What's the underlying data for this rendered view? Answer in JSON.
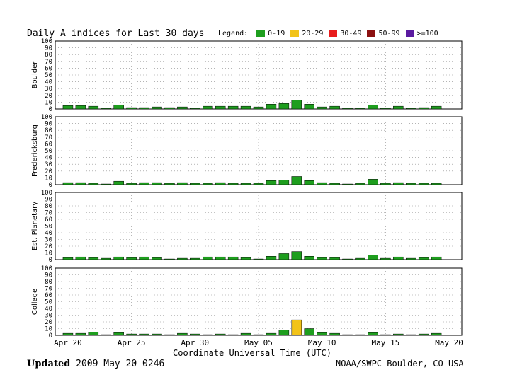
{
  "title": "Daily A  indices for Last 30 days",
  "legend": {
    "label": "Legend:",
    "items": [
      {
        "label": "0-19",
        "color": "#1e9e1e"
      },
      {
        "label": "20-29",
        "color": "#f2c318"
      },
      {
        "label": "30-49",
        "color": "#e81c1c"
      },
      {
        "label": "50-99",
        "color": "#8b1010"
      },
      {
        "label": ">=100",
        "color": "#5a1aa0"
      }
    ]
  },
  "footer": {
    "updated_label": "Updated",
    "updated_value": "2009 May 20 0246",
    "source": "NOAA/SWPC Boulder, CO USA"
  },
  "chart_data": [
    {
      "type": "bar",
      "ylabel": "Boulder",
      "ylim": [
        0,
        100
      ],
      "yticks": [
        0,
        10,
        20,
        30,
        40,
        50,
        60,
        70,
        80,
        90,
        100
      ],
      "x_tick_labels": [
        "Apr 20",
        "Apr 25",
        "Apr 30",
        "May 05",
        "May 10",
        "May 15",
        "May 20"
      ],
      "categories": [
        "Apr 20",
        "Apr 21",
        "Apr 22",
        "Apr 23",
        "Apr 24",
        "Apr 25",
        "Apr 26",
        "Apr 27",
        "Apr 28",
        "Apr 29",
        "Apr 30",
        "May 01",
        "May 02",
        "May 03",
        "May 04",
        "May 05",
        "May 06",
        "May 07",
        "May 08",
        "May 09",
        "May 10",
        "May 11",
        "May 12",
        "May 13",
        "May 14",
        "May 15",
        "May 16",
        "May 17",
        "May 18",
        "May 19"
      ],
      "values": [
        5,
        5,
        4,
        1,
        6,
        2,
        2,
        3,
        2,
        3,
        1,
        4,
        4,
        4,
        4,
        3,
        7,
        8,
        13,
        7,
        3,
        4,
        1,
        1,
        6,
        1,
        4,
        1,
        2,
        4
      ],
      "grid": true
    },
    {
      "type": "bar",
      "ylabel": "Fredericksburg",
      "ylim": [
        0,
        100
      ],
      "yticks": [
        0,
        10,
        20,
        30,
        40,
        50,
        60,
        70,
        80,
        90,
        100
      ],
      "x_tick_labels": [
        "Apr 20",
        "Apr 25",
        "Apr 30",
        "May 05",
        "May 10",
        "May 15",
        "May 20"
      ],
      "categories": [
        "Apr 20",
        "Apr 21",
        "Apr 22",
        "Apr 23",
        "Apr 24",
        "Apr 25",
        "Apr 26",
        "Apr 27",
        "Apr 28",
        "Apr 29",
        "Apr 30",
        "May 01",
        "May 02",
        "May 03",
        "May 04",
        "May 05",
        "May 06",
        "May 07",
        "May 08",
        "May 09",
        "May 10",
        "May 11",
        "May 12",
        "May 13",
        "May 14",
        "May 15",
        "May 16",
        "May 17",
        "May 18",
        "May 19"
      ],
      "values": [
        3,
        3,
        2,
        1,
        5,
        2,
        3,
        3,
        2,
        3,
        2,
        2,
        3,
        2,
        2,
        2,
        6,
        7,
        12,
        6,
        3,
        2,
        1,
        2,
        8,
        2,
        3,
        2,
        2,
        2
      ],
      "grid": true
    },
    {
      "type": "bar",
      "ylabel": "Est. Planetary",
      "ylim": [
        0,
        100
      ],
      "yticks": [
        0,
        10,
        20,
        30,
        40,
        50,
        60,
        70,
        80,
        90,
        100
      ],
      "x_tick_labels": [
        "Apr 20",
        "Apr 25",
        "Apr 30",
        "May 05",
        "May 10",
        "May 15",
        "May 20"
      ],
      "categories": [
        "Apr 20",
        "Apr 21",
        "Apr 22",
        "Apr 23",
        "Apr 24",
        "Apr 25",
        "Apr 26",
        "Apr 27",
        "Apr 28",
        "Apr 29",
        "Apr 30",
        "May 01",
        "May 02",
        "May 03",
        "May 04",
        "May 05",
        "May 06",
        "May 07",
        "May 08",
        "May 09",
        "May 10",
        "May 11",
        "May 12",
        "May 13",
        "May 14",
        "May 15",
        "May 16",
        "May 17",
        "May 18",
        "May 19"
      ],
      "values": [
        3,
        4,
        3,
        2,
        4,
        3,
        4,
        3,
        1,
        2,
        2,
        4,
        4,
        4,
        3,
        1,
        5,
        9,
        12,
        5,
        3,
        3,
        1,
        2,
        7,
        2,
        4,
        2,
        3,
        4
      ],
      "grid": true
    },
    {
      "type": "bar",
      "ylabel": "College",
      "ylim": [
        0,
        100
      ],
      "yticks": [
        0,
        10,
        20,
        30,
        40,
        50,
        60,
        70,
        80,
        90,
        100
      ],
      "x_tick_labels": [
        "Apr 20",
        "Apr 25",
        "Apr 30",
        "May 05",
        "May 10",
        "May 15",
        "May 20"
      ],
      "xlabel": "Coordinate Universal Time (UTC)",
      "categories": [
        "Apr 20",
        "Apr 21",
        "Apr 22",
        "Apr 23",
        "Apr 24",
        "Apr 25",
        "Apr 26",
        "Apr 27",
        "Apr 28",
        "Apr 29",
        "Apr 30",
        "May 01",
        "May 02",
        "May 03",
        "May 04",
        "May 05",
        "May 06",
        "May 07",
        "May 08",
        "May 09",
        "May 10",
        "May 11",
        "May 12",
        "May 13",
        "May 14",
        "May 15",
        "May 16",
        "May 17",
        "May 18",
        "May 19"
      ],
      "values": [
        3,
        3,
        5,
        1,
        4,
        2,
        2,
        2,
        1,
        3,
        2,
        1,
        2,
        1,
        3,
        1,
        3,
        8,
        23,
        10,
        4,
        3,
        1,
        1,
        4,
        1,
        2,
        1,
        2,
        3
      ],
      "grid": true
    }
  ]
}
